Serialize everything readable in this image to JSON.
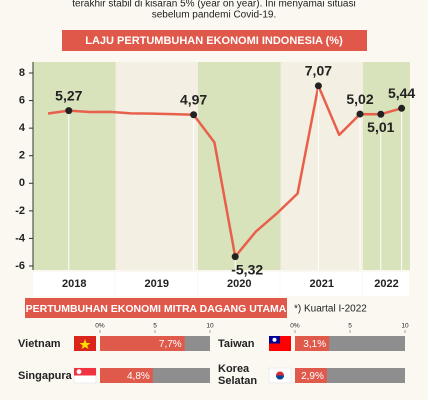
{
  "intro": [
    "terakhir stabil di kisaran 5% (year on year). Ini menyamai situasi",
    "sebelum pandemi Covid-19."
  ],
  "chart_data": [
    {
      "type": "line",
      "title": "LAJU PERTUMBUHAN EKONOMI INDONESIA (%)",
      "categories": [
        null,
        null,
        null,
        null,
        null,
        null,
        null,
        null,
        null,
        null,
        null,
        null,
        null,
        null,
        null,
        null,
        null,
        null
      ],
      "years": [
        "2018",
        "2019",
        "2020",
        "2021",
        "2022"
      ],
      "values": [
        5.06,
        5.27,
        5.17,
        5.18,
        5.07,
        5.05,
        5.02,
        4.97,
        2.97,
        -5.32,
        -3.49,
        -2.19,
        -0.74,
        7.07,
        3.51,
        5.02,
        5.01,
        5.44
      ],
      "value_labels": [
        null,
        "5,27",
        null,
        null,
        null,
        null,
        null,
        "4,97",
        null,
        "-5,32",
        null,
        null,
        null,
        "7,07",
        null,
        "5,02",
        "5,01",
        "5,44"
      ],
      "color": "#e8604c",
      "band_colors": [
        "#d8e2bb",
        "#f3efe2"
      ],
      "ylim": [
        -6,
        8
      ],
      "yticks": [
        -6,
        -4,
        -2,
        0,
        2,
        4,
        6,
        8
      ]
    },
    {
      "type": "bar",
      "title": "PERTUMBUHAN EKONOMI MITRA DAGANG UTAMA",
      "note": "*) Kuartal I-2022",
      "categories": [
        "Vietnam",
        "Taiwan",
        "Singapura",
        "Korea Selatan"
      ],
      "values": [
        7.7,
        3.1,
        4.8,
        2.9
      ],
      "value_labels": [
        "7,7%",
        "3,1%",
        "4,8%",
        "2,9%"
      ],
      "color": "#e05a4c",
      "track_color": "#8e8e8e",
      "xlim": [
        0,
        10
      ],
      "xticks": [
        {
          "value": 0,
          "label": "0%"
        },
        5,
        10
      ]
    }
  ]
}
